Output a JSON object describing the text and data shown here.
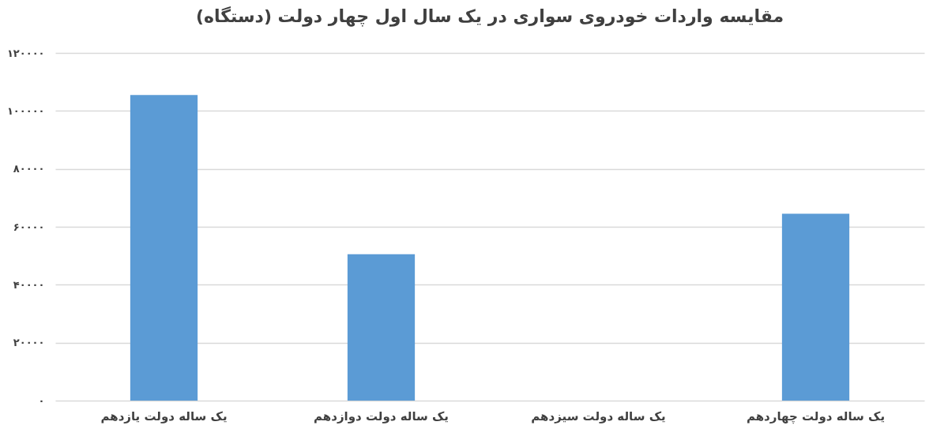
{
  "chart_data": {
    "type": "bar",
    "title": "مقایسه واردات خودروی سواری در یک سال اول چهار دولت (دستگاه)",
    "categories": [
      "یک ساله دولت یازدهم",
      "یک ساله دولت دوازدهم",
      "یک ساله دولت سیزدهم",
      "یک ساله دولت چهاردهم"
    ],
    "values": [
      105500,
      50500,
      0,
      64500
    ],
    "color": "#5b9bd5",
    "ylim": [
      0,
      120000
    ],
    "yticks": [
      {
        "value": 0,
        "label": "۰"
      },
      {
        "value": 20000,
        "label": "۲۰۰۰۰"
      },
      {
        "value": 40000,
        "label": "۴۰۰۰۰"
      },
      {
        "value": 60000,
        "label": "۶۰۰۰۰"
      },
      {
        "value": 80000,
        "label": "۸۰۰۰۰"
      },
      {
        "value": 100000,
        "label": "۱۰۰۰۰۰"
      },
      {
        "value": 120000,
        "label": "۱۲۰۰۰۰"
      }
    ],
    "grid": "y"
  }
}
